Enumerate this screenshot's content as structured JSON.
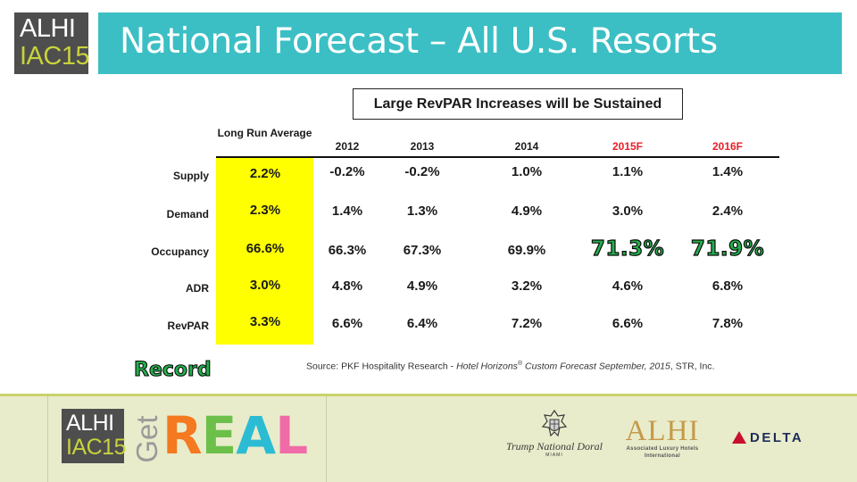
{
  "header": {
    "logo_line1": "ALHI",
    "logo_line2": "IAC15",
    "title": "National Forecast – All U.S. Resorts"
  },
  "callout": "Large RevPAR Increases will be Sustained",
  "table": {
    "columns": [
      "Long Run Average",
      "2012",
      "2013",
      "2014",
      "2015F",
      "2016F"
    ],
    "forecast_color": "#e8202a",
    "highlight_color": "#ffff00",
    "rows": [
      {
        "label": "Supply",
        "values": [
          "2.2%",
          "-0.2%",
          "-0.2%",
          "1.0%",
          "1.1%",
          "1.4%"
        ]
      },
      {
        "label": "Demand",
        "values": [
          "2.3%",
          "1.4%",
          "1.3%",
          "4.9%",
          "3.0%",
          "2.4%"
        ]
      },
      {
        "label": "Occupancy",
        "values": [
          "66.6%",
          "66.3%",
          "67.3%",
          "69.9%",
          "71.3%",
          "71.9%"
        ]
      },
      {
        "label": "ADR",
        "values": [
          "3.0%",
          "4.8%",
          "4.9%",
          "3.2%",
          "4.6%",
          "6.8%"
        ]
      },
      {
        "label": "RevPAR",
        "values": [
          "3.3%",
          "6.6%",
          "6.4%",
          "7.2%",
          "6.6%",
          "7.8%"
        ]
      }
    ]
  },
  "record_label": "Record",
  "source": {
    "prefix": "Source: PKF Hospitality Research - ",
    "italic_1": "Hotel Horizons",
    "reg": "®",
    "italic_2": " Custom Forecast September, 2015",
    "suffix": ", STR, Inc."
  },
  "footer": {
    "logo_line1": "ALHI",
    "logo_line2": "IAC15",
    "get_word": "Get",
    "real_letters": [
      {
        "char": "R",
        "color": "#f47920"
      },
      {
        "char": "E",
        "color": "#6cc04a"
      },
      {
        "char": "A",
        "color": "#2bbcd4"
      },
      {
        "char": "L",
        "color": "#f06ba8"
      }
    ],
    "trump_name": "Trump National Doral",
    "trump_sub": "MIAMI",
    "alhi_logo": "ALHI",
    "alhi_sub1": "Associated Luxury Hotels",
    "alhi_sub2": "International",
    "delta": "DELTA",
    "delta_color": "#c8102e"
  }
}
